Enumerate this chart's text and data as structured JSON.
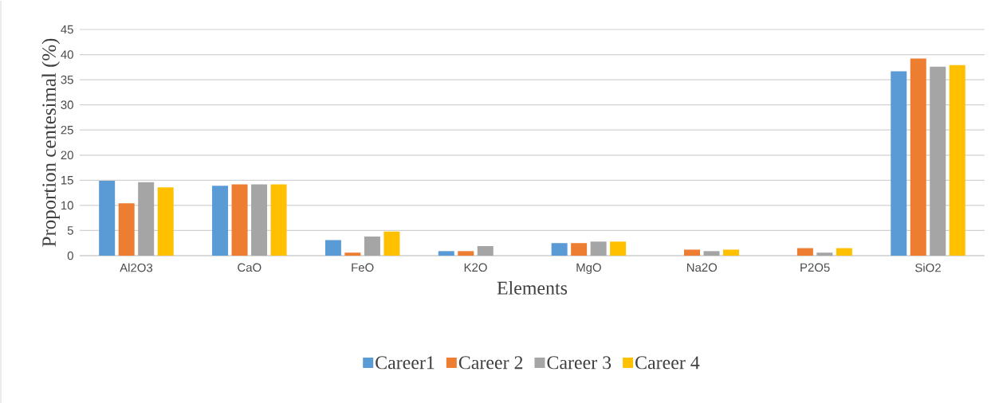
{
  "chart_data": {
    "type": "bar",
    "xlabel": "Elements",
    "ylabel": "Proportion  centesimal  (%)",
    "categories": [
      "Al2O3",
      "CaO",
      "FeO",
      "K2O",
      "MgO",
      "Na2O",
      "P2O5",
      "SiO2"
    ],
    "series": [
      {
        "name": "Career1",
        "color": "#5b9bd5",
        "values": [
          14.9,
          13.9,
          3.1,
          0.9,
          2.5,
          null,
          null,
          36.7
        ]
      },
      {
        "name": "Career 2",
        "color": "#ed7d31",
        "values": [
          10.4,
          14.2,
          0.6,
          0.9,
          2.5,
          1.2,
          1.5,
          39.2
        ]
      },
      {
        "name": "Career 3",
        "color": "#a5a5a5",
        "values": [
          14.6,
          14.2,
          3.8,
          1.9,
          2.8,
          0.9,
          0.6,
          37.6
        ]
      },
      {
        "name": "Career 4",
        "color": "#ffc000",
        "values": [
          13.6,
          14.2,
          4.8,
          null,
          2.8,
          1.2,
          1.5,
          37.9
        ]
      }
    ],
    "ylim": [
      0,
      45
    ],
    "yticks": [
      0,
      5,
      10,
      15,
      20,
      25,
      30,
      35,
      40,
      45
    ],
    "grid": "y",
    "legend": "bottom"
  }
}
